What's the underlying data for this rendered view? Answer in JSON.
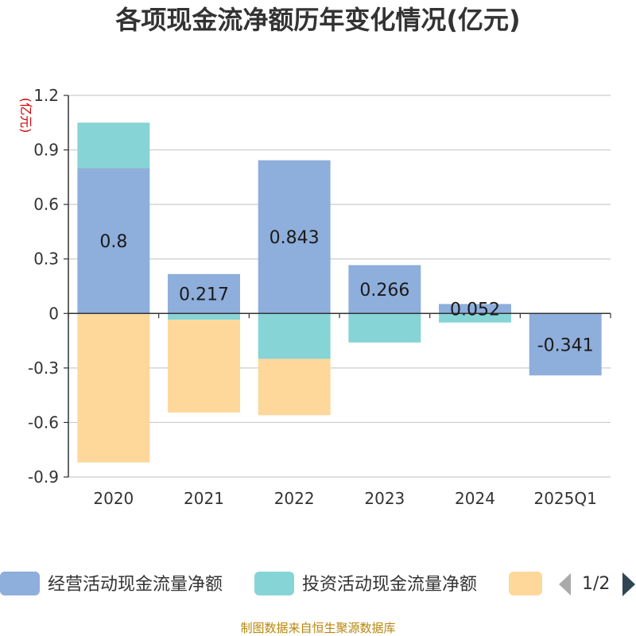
{
  "chart_data": {
    "type": "bar",
    "stacked": true,
    "title": "各项现金流净额历年变化情况(亿元)",
    "ylabel": "(亿元)",
    "categories": [
      "2020",
      "2021",
      "2022",
      "2023",
      "2024",
      "2025Q1"
    ],
    "ylim": [
      -0.9,
      1.2
    ],
    "yticks": [
      "1.2",
      "0.9",
      "0.6",
      "0.3",
      "0",
      "-0.3",
      "-0.6",
      "-0.9"
    ],
    "grid": true,
    "legend_position": "bottom",
    "series": [
      {
        "name": "经营活动现金流量净额",
        "color": "#8eaedb",
        "values": [
          0.8,
          0.217,
          0.843,
          0.266,
          0.052,
          -0.341
        ]
      },
      {
        "name": "投资活动现金流量净额",
        "color": "#86d4d6",
        "values": [
          0.25,
          -0.035,
          -0.25,
          -0.16,
          -0.05,
          0
        ]
      },
      {
        "name": "",
        "color": "#fdd89a",
        "values": [
          -0.82,
          -0.51,
          -0.31,
          0,
          0,
          0
        ]
      }
    ],
    "data_labels": [
      "0.8",
      "0.217",
      "0.843",
      "0.266",
      "0.052",
      "-0.341"
    ]
  },
  "legend": {
    "page_indicator": "1/2"
  },
  "source": "制图数据来自恒生聚源数据库"
}
